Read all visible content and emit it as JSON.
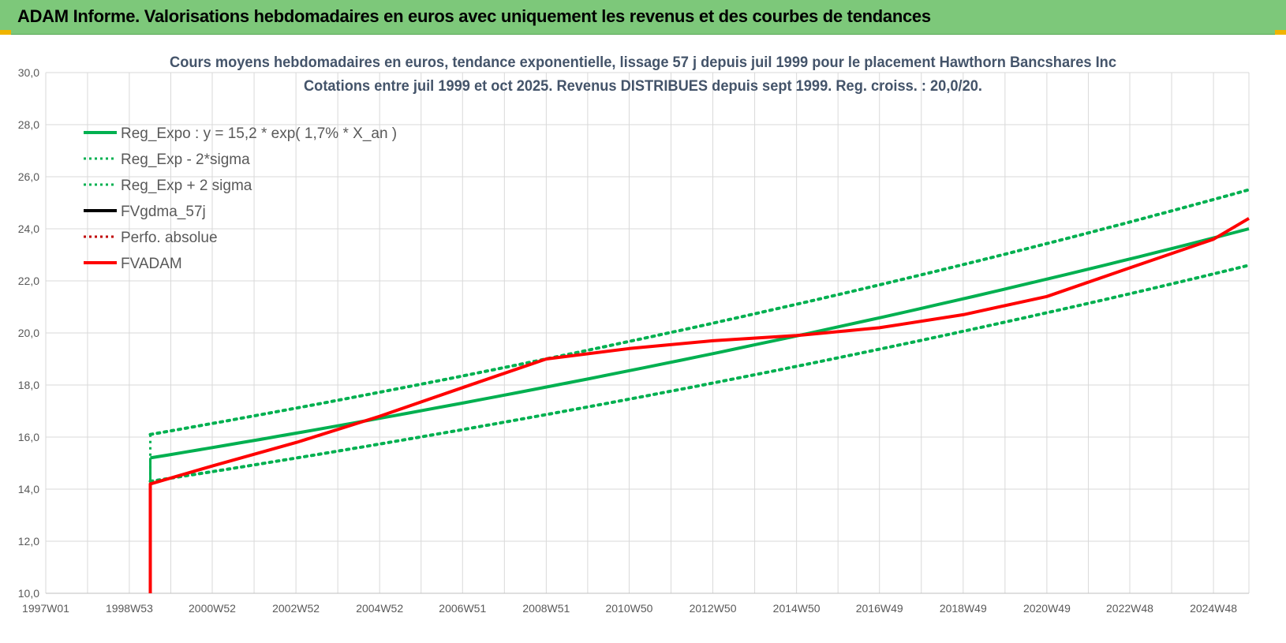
{
  "banner": {
    "title": "ADAM Informe. Valorisations hebdomadaires en euros avec uniquement les revenus et des courbes de tendances"
  },
  "colors": {
    "banner_bg": "#7dc87a",
    "green": "#00b050",
    "red": "#ff0000",
    "dark_red": "#c00000",
    "black": "#000000",
    "grid": "#d9d9d9",
    "accent": "#f0b400"
  },
  "chart_data": {
    "type": "line",
    "title": "Cours moyens hebdomadaires en euros, tendance exponentielle, lissage 57 j depuis juil 1999 pour le placement Hawthorn Bancshares Inc",
    "subtitle": "Cotations entre juil 1999 et oct 2025. Revenus DISTRIBUES depuis sept 1999. Reg. croiss. : 20,0/20.",
    "xlabel": "",
    "ylabel": "",
    "ylim": [
      10,
      30
    ],
    "yticks": [
      "10,0",
      "12,0",
      "14,0",
      "16,0",
      "18,0",
      "20,0",
      "22,0",
      "24,0",
      "26,0",
      "28,0",
      "30,0"
    ],
    "xticks": [
      "1997W01",
      "1998W53",
      "2000W52",
      "2002W52",
      "2004W52",
      "2006W51",
      "2008W51",
      "2010W50",
      "2012W50",
      "2014W50",
      "2016W49",
      "2018W49",
      "2020W49",
      "2022W48",
      "2024W48"
    ],
    "grid": true,
    "legend_position": "top-left",
    "series": [
      {
        "name": "Reg_Expo : y = 15,2 * exp( 1,7% *  X_an )",
        "color": "#00b050",
        "style": "solid",
        "x": [
          "1999W27",
          "2025W40"
        ],
        "y": [
          15.2,
          24.0
        ]
      },
      {
        "name": "Reg_Exp - 2*sigma",
        "color": "#00b050",
        "style": "dotted",
        "x": [
          "1999W27",
          "2025W40"
        ],
        "y": [
          14.3,
          22.6
        ]
      },
      {
        "name": "Reg_Exp + 2 sigma",
        "color": "#00b050",
        "style": "dotted",
        "x": [
          "1999W27",
          "2025W40"
        ],
        "y": [
          16.1,
          25.5
        ]
      },
      {
        "name": "FVgdma_57j",
        "color": "#000000",
        "style": "solid",
        "x": [],
        "y": []
      },
      {
        "name": "Perfo. absolue",
        "color": "#c00000",
        "style": "dotted",
        "x": [],
        "y": []
      },
      {
        "name": "FVADAM",
        "color": "#ff0000",
        "style": "solid",
        "x": [
          "1999W27",
          "1999W27",
          "2001W01",
          "2003W01",
          "2004W52",
          "2006W51",
          "2008W51",
          "2010W50",
          "2012W50",
          "2014W50",
          "2016W49",
          "2018W49",
          "2020W49",
          "2022W48",
          "2024W48",
          "2025W40"
        ],
        "y": [
          10.0,
          14.2,
          14.9,
          15.8,
          16.8,
          17.9,
          19.0,
          19.4,
          19.7,
          19.9,
          20.2,
          20.7,
          21.4,
          22.5,
          23.6,
          24.4
        ]
      }
    ]
  }
}
